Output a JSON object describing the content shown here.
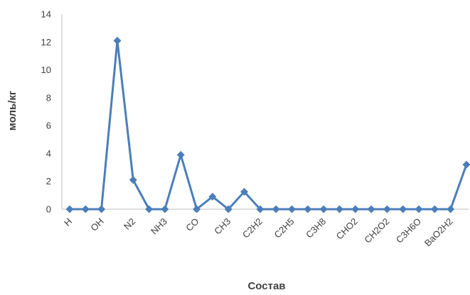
{
  "chart_data": {
    "type": "line",
    "title": "",
    "xlabel": "Состав",
    "ylabel": "моль/кг",
    "ylim": [
      0,
      14
    ],
    "yticks": [
      0,
      2,
      4,
      6,
      8,
      10,
      12,
      14
    ],
    "grid": false,
    "legend": "none",
    "categories": [
      "H",
      "",
      "OH",
      "",
      "N2",
      "",
      "NH3",
      "",
      "CO",
      "",
      "CH3",
      "",
      "C2H2",
      "",
      "C2H5",
      "",
      "C3H8",
      "",
      "CHO2",
      "",
      "CH2O2",
      "",
      "C3H6O",
      "",
      "BaO2H2",
      ""
    ],
    "series": [
      {
        "values": [
          0,
          0,
          0,
          12.1,
          2.1,
          0,
          0,
          3.9,
          0,
          0.9,
          0,
          1.25,
          0,
          0,
          0,
          0,
          0,
          0,
          0,
          0,
          0,
          0,
          0,
          0,
          0,
          3.2
        ],
        "color": "#4a7ebb"
      }
    ]
  }
}
